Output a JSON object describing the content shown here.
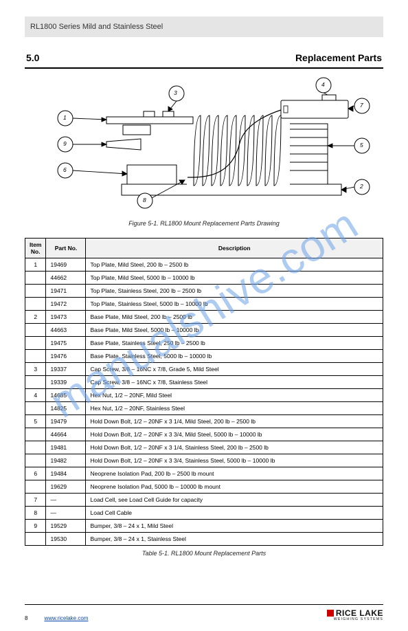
{
  "watermark": "manualshive.com",
  "header_small": "RL1800 Series Mild and Stainless Steel",
  "section": {
    "number": "5.0",
    "title": "Replacement Parts"
  },
  "figure": {
    "caption": "Figure 5-1. RL1800 Mount Replacement Parts Drawing",
    "callouts": {
      "c1": "1",
      "c2": "2",
      "c3": "3",
      "c4": "4",
      "c5": "5",
      "c6": "6",
      "c7": "7",
      "c8": "8",
      "c9": "9"
    },
    "colors": {
      "stroke": "#000000",
      "fill_detail": "#ffffff",
      "bellows_fill": "#ffffff"
    }
  },
  "table": {
    "columns": [
      "Item No.",
      "Part No.",
      "Description"
    ],
    "rows": [
      [
        "1",
        "19469",
        "Top Plate, Mild Steel, 200 lb – 2500 lb"
      ],
      [
        "",
        "44662",
        "Top Plate, Mild Steel, 5000 lb – 10000 lb"
      ],
      [
        "",
        "19471",
        "Top Plate, Stainless Steel, 200 lb – 2500 lb"
      ],
      [
        "",
        "19472",
        "Top Plate, Stainless Steel, 5000 lb – 10000 lb"
      ],
      [
        "2",
        "19473",
        "Base Plate, Mild Steel, 200 lb – 2500 lb"
      ],
      [
        "",
        "44663",
        "Base Plate, Mild Steel, 5000 lb – 10000 lb"
      ],
      [
        "",
        "19475",
        "Base Plate, Stainless Steel, 250 lb – 2500 lb"
      ],
      [
        "",
        "19476",
        "Base Plate, Stainless Steel, 5000 lb – 10000 lb"
      ],
      [
        "3",
        "19337",
        "Cap Screw, 3/8 – 16NC x 7/8, Grade 5, Mild Steel"
      ],
      [
        "",
        "19339",
        "Cap Screw, 3/8 – 16NC x 7/8, Stainless Steel"
      ],
      [
        "4",
        "14685",
        "Hex Nut, 1/2 – 20NF, Mild Steel"
      ],
      [
        "",
        "14825",
        "Hex Nut, 1/2 – 20NF, Stainless Steel"
      ],
      [
        "5",
        "19479",
        "Hold Down Bolt, 1/2 – 20NF x 3 1/4, Mild Steel, 200 lb – 2500 lb"
      ],
      [
        "",
        "44664",
        "Hold Down Bolt, 1/2 – 20NF x 3 3/4, Mild Steel, 5000 lb – 10000 lb"
      ],
      [
        "",
        "19481",
        "Hold Down Bolt, 1/2 – 20NF x 3 1/4, Stainless Steel, 200 lb – 2500 lb"
      ],
      [
        "",
        "19482",
        "Hold Down Bolt, 1/2 – 20NF x 3 3/4, Stainless Steel, 5000 lb – 10000 lb"
      ],
      [
        "6",
        "19484",
        "Neoprene Isolation Pad, 200 lb – 2500 lb mount"
      ],
      [
        "",
        "19629",
        "Neoprene Isolation Pad, 5000 lb – 10000 lb mount"
      ],
      [
        "7",
        "—",
        "Load Cell, see Load Cell Guide for capacity"
      ],
      [
        "8",
        "—",
        "Load Cell Cable"
      ],
      [
        "9",
        "19529",
        "Bumper, 3/8 – 24 x 1, Mild Steel"
      ],
      [
        "",
        "19530",
        "Bumper, 3/8 – 24 x 1, Stainless Steel"
      ]
    ],
    "caption": "Table 5-1. RL1800 Mount Replacement Parts"
  },
  "footer": {
    "page": "8",
    "url": "www.ricelake.com",
    "logo_main": "RICE LAKE",
    "logo_sub": "WEIGHING SYSTEMS"
  }
}
